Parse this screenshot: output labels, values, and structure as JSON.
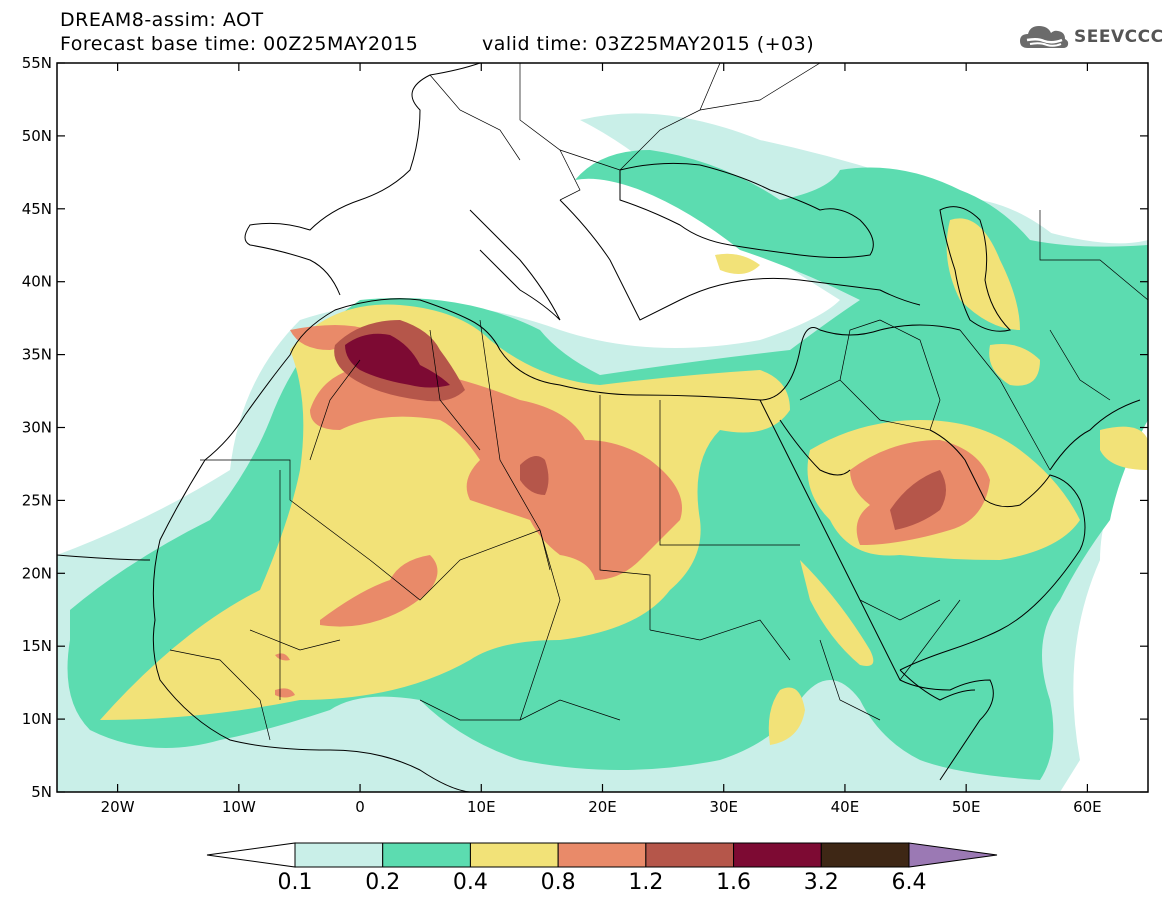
{
  "header": {
    "line1": "DREAM8-assim: AOT",
    "line2": "Forecast base time: 00Z25MAY2015",
    "valid": "valid time: 03Z25MAY2015 (+03)"
  },
  "logo": {
    "icon": "cloud-icon",
    "text": "SEEVCCC"
  },
  "map": {
    "lon_range": [
      -25,
      65
    ],
    "lat_range": [
      5,
      55
    ],
    "lat_ticks": [
      {
        "value": 55,
        "label": "55N"
      },
      {
        "value": 50,
        "label": "50N"
      },
      {
        "value": 45,
        "label": "45N"
      },
      {
        "value": 40,
        "label": "40N"
      },
      {
        "value": 35,
        "label": "35N"
      },
      {
        "value": 30,
        "label": "30N"
      },
      {
        "value": 25,
        "label": "25N"
      },
      {
        "value": 20,
        "label": "20N"
      },
      {
        "value": 15,
        "label": "15N"
      },
      {
        "value": 10,
        "label": "10N"
      },
      {
        "value": 5,
        "label": "5N"
      }
    ],
    "lon_ticks": [
      {
        "value": -20,
        "label": "20W"
      },
      {
        "value": -10,
        "label": "10W"
      },
      {
        "value": 0,
        "label": "0"
      },
      {
        "value": 10,
        "label": "10E"
      },
      {
        "value": 20,
        "label": "20E"
      },
      {
        "value": 30,
        "label": "30E"
      },
      {
        "value": 40,
        "label": "40E"
      },
      {
        "value": 50,
        "label": "50E"
      },
      {
        "value": 60,
        "label": "60E"
      }
    ]
  },
  "colorbar": {
    "colors": [
      "#ffffff",
      "#c9efe8",
      "#5cdcb0",
      "#f2e278",
      "#e98a69",
      "#b5564a",
      "#7d0a33",
      "#3e2715",
      "#9b79b4"
    ],
    "labels": [
      "0.1",
      "0.2",
      "0.4",
      "0.8",
      "1.2",
      "1.6",
      "3.2",
      "6.4"
    ]
  }
}
